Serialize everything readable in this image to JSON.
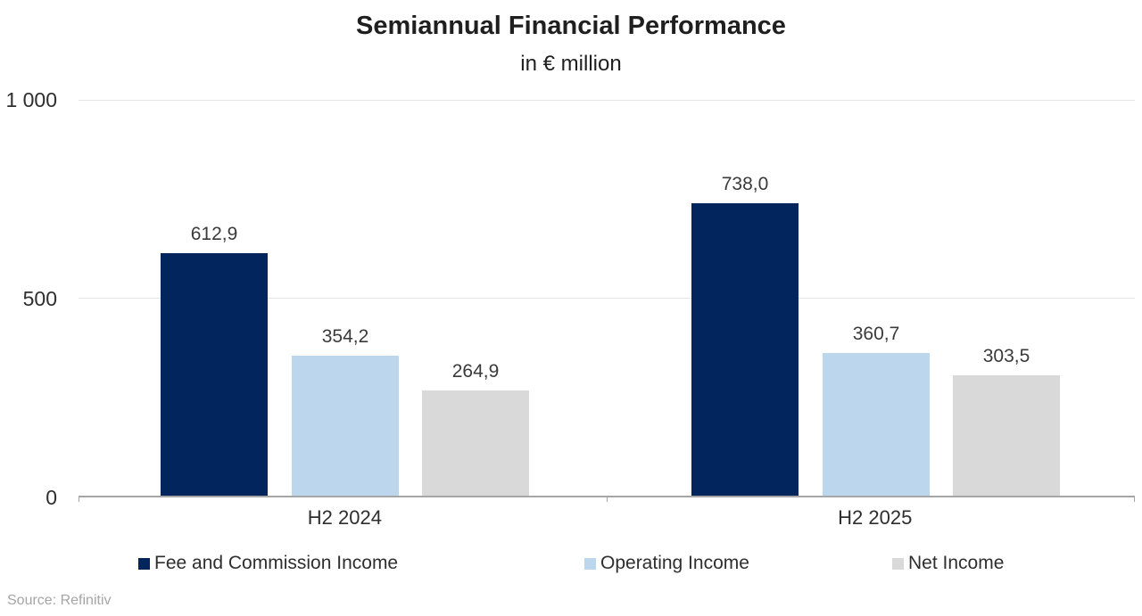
{
  "chart": {
    "title": "Semiannual Financial Performance",
    "subtitle": "in € million",
    "source": "Source: Refinitiv"
  },
  "chart_data": {
    "type": "bar",
    "categories": [
      "H2 2024",
      "H2 2025"
    ],
    "series": [
      {
        "name": "Fee and Commission Income",
        "color": "#03255e",
        "values": [
          612.9,
          738.0
        ],
        "labels": [
          "612,9",
          "738,0"
        ]
      },
      {
        "name": "Operating Income",
        "color": "#bcd6ed",
        "values": [
          354.2,
          360.7
        ],
        "labels": [
          "354,2",
          "360,7"
        ]
      },
      {
        "name": "Net Income",
        "color": "#d9d9d9",
        "values": [
          264.9,
          303.5
        ],
        "labels": [
          "264,9",
          "303,5"
        ]
      }
    ],
    "title": "Semiannual Financial Performance",
    "subtitle": "in € million",
    "xlabel": "",
    "ylabel": "",
    "ylim": [
      0,
      1000
    ],
    "yticks": [
      0,
      500,
      1000
    ],
    "ytick_labels": [
      "0",
      "500",
      "1 000"
    ],
    "grid": true,
    "legend_position": "bottom",
    "axis_color": "#a6a6a6",
    "gridline_color": "#e4e4e4"
  }
}
